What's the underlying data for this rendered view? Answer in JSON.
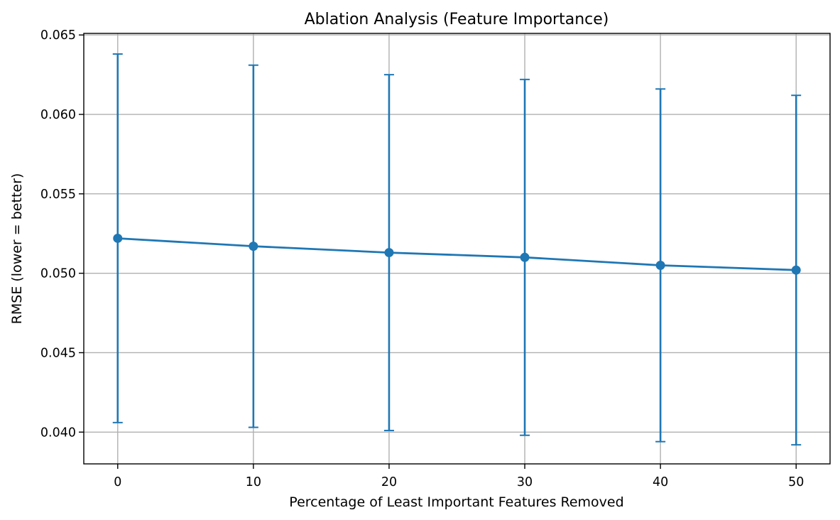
{
  "chart_data": {
    "type": "line",
    "title": "Ablation Analysis (Feature Importance)",
    "xlabel": "Percentage of Least Important Features Removed",
    "ylabel": "RMSE (lower = better)",
    "xlim": [
      -2.5,
      52.5
    ],
    "ylim": [
      0.038,
      0.0651
    ],
    "x_ticks": [
      0,
      10,
      20,
      30,
      40,
      50
    ],
    "x_tick_labels": [
      "0",
      "10",
      "20",
      "30",
      "40",
      "50"
    ],
    "y_ticks": [
      0.04,
      0.045,
      0.05,
      0.055,
      0.06,
      0.065
    ],
    "y_tick_labels": [
      "0.040",
      "0.045",
      "0.050",
      "0.055",
      "0.060",
      "0.065"
    ],
    "grid": true,
    "series": [
      {
        "color": "#1f77b4",
        "marker": "circle",
        "x": [
          0,
          10,
          20,
          30,
          40,
          50
        ],
        "y": [
          0.0522,
          0.0517,
          0.0513,
          0.051,
          0.0505,
          0.0502
        ],
        "error": [
          0.0116,
          0.0114,
          0.0112,
          0.0112,
          0.0111,
          0.011
        ]
      }
    ]
  }
}
